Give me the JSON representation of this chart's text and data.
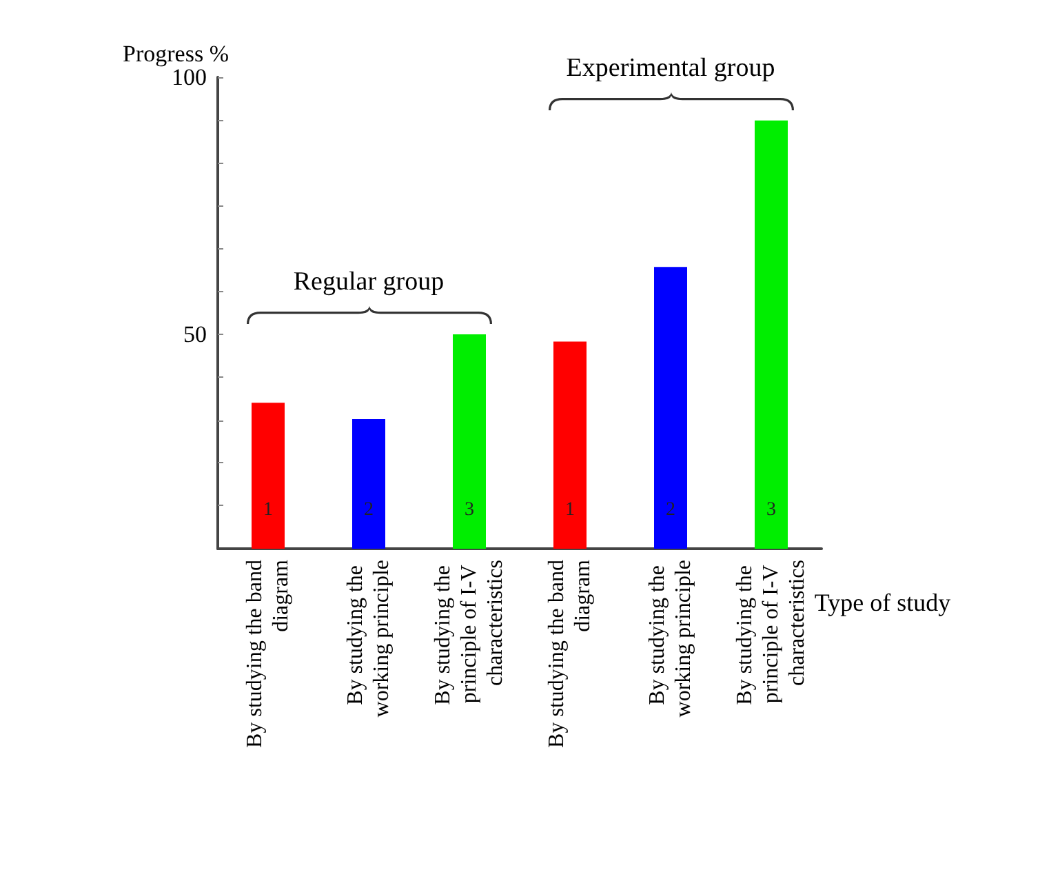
{
  "chart_data": {
    "type": "bar",
    "ylabel": "Progress %",
    "xlabel": "Type of study",
    "categories": [
      "By studying the band diagram",
      "By studying the working principle",
      "By studying the principle of I-V characteristics",
      "By studying the band diagram",
      "By studying the working principle",
      "By studying the principle of I-V characteristics"
    ],
    "series": [
      {
        "name": "Regular group",
        "colors": [
          "#ff0000",
          "#0000ff",
          "#00ee00",
          null,
          null,
          null
        ],
        "values": [
          36.7,
          33.5,
          50,
          null,
          null,
          null
        ]
      },
      {
        "name": "Experimental group",
        "colors": [
          null,
          null,
          null,
          "#ff0000",
          "#0000ff",
          "#00ee00"
        ],
        "values": [
          null,
          null,
          null,
          48.6,
          63.1,
          91.6
        ]
      }
    ],
    "annotations": [
      "1",
      "2",
      "3",
      "1",
      "2",
      "3"
    ],
    "ylim": [
      8.3,
      100
    ],
    "yticks": [
      {
        "value": 16.7,
        "label": null
      },
      {
        "value": 25,
        "label": null
      },
      {
        "value": 33.3,
        "label": null
      },
      {
        "value": 41.7,
        "label": null
      },
      50,
      {
        "value": 58.3,
        "label": null
      },
      {
        "value": 66.7,
        "label": null
      },
      {
        "value": 75,
        "label": null
      },
      {
        "value": 83.3,
        "label": null
      },
      {
        "value": 91.7,
        "label": null
      },
      100
    ],
    "grid": false,
    "legend": false
  }
}
